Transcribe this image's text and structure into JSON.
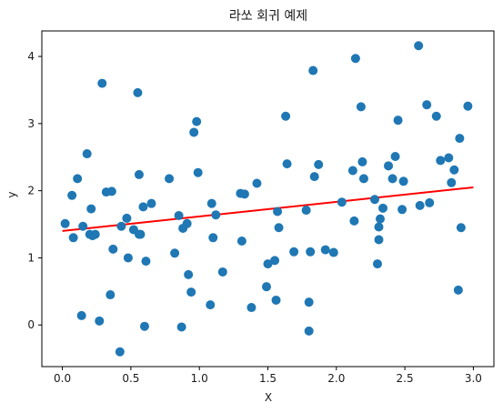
{
  "chart_data": {
    "type": "scatter",
    "title": "라쏘 회귀 예제",
    "xlabel": "X",
    "ylabel": "y",
    "xlim": [
      -0.15,
      3.15
    ],
    "ylim": [
      -0.62,
      4.38
    ],
    "xticks": [
      "0.0",
      "0.5",
      "1.0",
      "1.5",
      "2.0",
      "2.5",
      "3.0"
    ],
    "yticks": [
      "0",
      "1",
      "2",
      "3",
      "4"
    ],
    "grid": false,
    "colors": {
      "points": "#1f77b4",
      "fit_line": "#ff0000"
    },
    "series": [
      {
        "kind": "points",
        "x": [
          0.02,
          0.07,
          0.08,
          0.11,
          0.14,
          0.15,
          0.18,
          0.2,
          0.21,
          0.22,
          0.24,
          0.27,
          0.29,
          0.32,
          0.35,
          0.36,
          0.37,
          0.42,
          0.43,
          0.47,
          0.48,
          0.52,
          0.55,
          0.56,
          0.57,
          0.56,
          0.59,
          0.6,
          0.61,
          0.65,
          0.78,
          0.82,
          0.85,
          0.87,
          0.88,
          0.91,
          0.92,
          0.94,
          0.96,
          0.98,
          0.99,
          1.08,
          1.09,
          1.1,
          1.12,
          1.17,
          1.3,
          1.31,
          1.33,
          1.38,
          1.42,
          1.49,
          1.5,
          1.55,
          1.56,
          1.57,
          1.58,
          1.63,
          1.64,
          1.69,
          1.78,
          1.8,
          1.8,
          1.81,
          1.83,
          1.84,
          1.87,
          1.92,
          1.98,
          2.04,
          2.12,
          2.13,
          2.14,
          2.18,
          2.19,
          2.2,
          2.28,
          2.3,
          2.31,
          2.31,
          2.32,
          2.34,
          2.38,
          2.41,
          2.43,
          2.45,
          2.48,
          2.49,
          2.6,
          2.61,
          2.66,
          2.68,
          2.73,
          2.76,
          2.82,
          2.84,
          2.86,
          2.89,
          2.9,
          2.91,
          2.96
        ],
        "y": [
          1.51,
          1.93,
          1.3,
          2.18,
          0.14,
          1.47,
          2.55,
          1.35,
          1.73,
          1.33,
          1.35,
          0.06,
          3.6,
          1.98,
          0.45,
          1.99,
          1.13,
          -0.4,
          1.47,
          1.59,
          1.0,
          1.42,
          3.46,
          2.24,
          1.35,
          1.35,
          1.76,
          -0.02,
          0.95,
          1.81,
          2.18,
          1.07,
          1.63,
          -0.03,
          1.44,
          1.51,
          0.75,
          0.49,
          2.87,
          3.03,
          2.27,
          0.3,
          1.81,
          1.3,
          1.64,
          0.79,
          1.96,
          1.25,
          1.95,
          0.26,
          2.11,
          0.57,
          0.91,
          0.96,
          0.37,
          1.69,
          1.45,
          3.11,
          2.4,
          1.09,
          1.71,
          0.34,
          -0.09,
          1.09,
          3.79,
          2.21,
          2.39,
          1.12,
          1.08,
          1.83,
          2.3,
          1.55,
          3.97,
          3.25,
          2.43,
          2.18,
          1.87,
          0.91,
          1.27,
          1.46,
          1.58,
          1.74,
          2.37,
          2.18,
          2.51,
          3.05,
          1.72,
          2.14,
          4.16,
          1.78,
          3.28,
          1.82,
          3.11,
          2.45,
          2.49,
          2.12,
          2.31,
          0.52,
          2.78,
          1.45,
          3.26
        ]
      },
      {
        "kind": "fit_line",
        "x": [
          0.0,
          3.0
        ],
        "y": [
          1.4,
          2.05
        ]
      }
    ]
  }
}
